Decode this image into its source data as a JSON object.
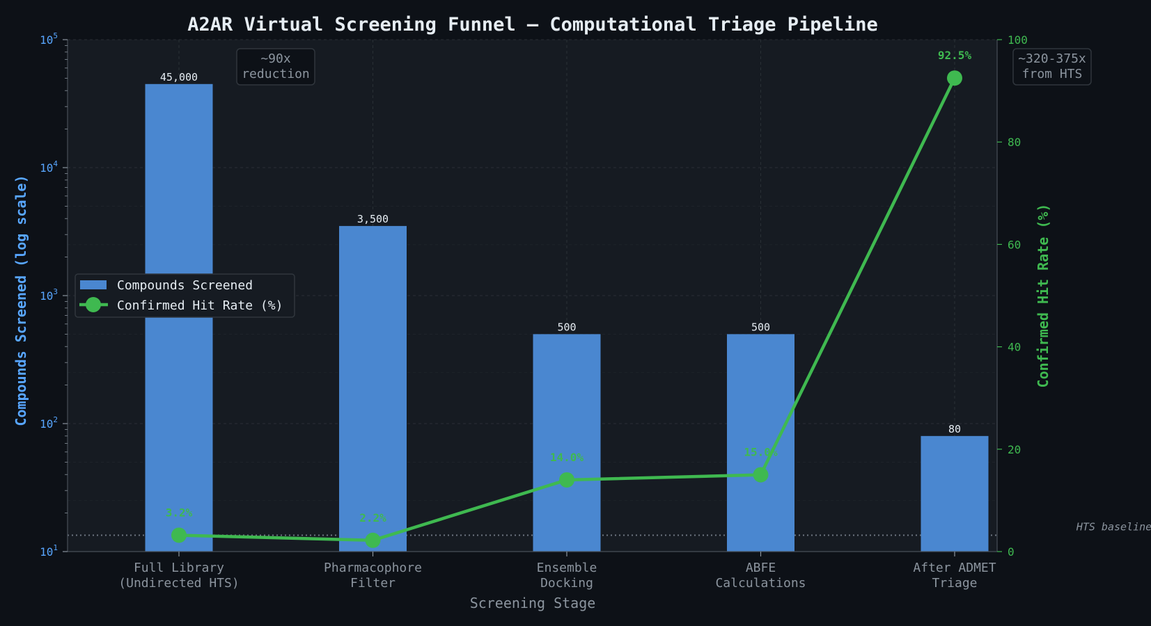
{
  "colors": {
    "background": "#0d1117",
    "plot_background": "#161b22",
    "bar": "#4a87d0",
    "line": "#3fb950",
    "left_axis": "#58a6ff",
    "right_axis": "#3fb950",
    "text": "#e6edf3",
    "muted": "#8b949e",
    "grid": "#30363d"
  },
  "chart_data": {
    "type": "bar",
    "title": "A2AR Virtual Screening Funnel — Computational Triage Pipeline",
    "xlabel": "Screening Stage",
    "ylabel": "Compounds Screened (log scale)",
    "y2label": "Confirmed Hit Rate (%)",
    "yscale": "log",
    "ylim": [
      10,
      100000
    ],
    "y2lim": [
      0,
      100
    ],
    "grid": true,
    "legend_position": "center-left",
    "categories": [
      [
        "Full Library",
        "(Undirected HTS)"
      ],
      [
        "Pharmacophore",
        "Filter"
      ],
      [
        "Ensemble",
        "Docking"
      ],
      [
        "ABFE",
        "Calculations"
      ],
      [
        "After ADMET",
        "Triage"
      ]
    ],
    "y_ticks": [
      {
        "value": 10,
        "base": "10",
        "exp": "1"
      },
      {
        "value": 100,
        "base": "10",
        "exp": "2"
      },
      {
        "value": 1000,
        "base": "10",
        "exp": "3"
      },
      {
        "value": 10000,
        "base": "10",
        "exp": "4"
      },
      {
        "value": 100000,
        "base": "10",
        "exp": "5"
      }
    ],
    "y2_ticks": [
      "0",
      "20",
      "40",
      "60",
      "80",
      "100"
    ],
    "series": [
      {
        "name": "Compounds Screened",
        "kind": "bar",
        "axis": "left",
        "values": [
          45000,
          3500,
          500,
          500,
          80
        ],
        "labels": [
          "45,000",
          "3,500",
          "500",
          "500",
          "80"
        ]
      },
      {
        "name": "Confirmed Hit Rate (%)",
        "kind": "line",
        "axis": "right",
        "values": [
          3.2,
          2.2,
          14.0,
          15.0,
          92.5
        ],
        "labels": [
          "3.2%",
          "2.2%",
          "14.0%",
          "15.0%",
          "92.5%"
        ]
      }
    ],
    "baseline": {
      "value": 3.2,
      "label": "HTS baseline"
    },
    "annotations": [
      {
        "lines": [
          "~90x",
          "reduction"
        ]
      },
      {
        "lines": [
          "~320-375x",
          "from HTS"
        ]
      }
    ]
  }
}
